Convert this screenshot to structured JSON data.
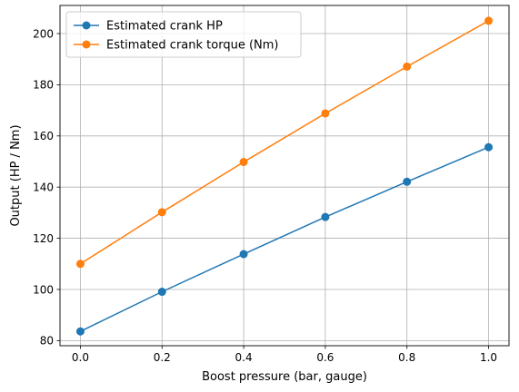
{
  "chart_data": {
    "type": "line",
    "title": "",
    "xlabel": "Boost pressure (bar, gauge)",
    "ylabel": "Output (HP / Nm)",
    "x": [
      0.0,
      0.2,
      0.4,
      0.6,
      0.8,
      1.0
    ],
    "xticks": [
      "0.0",
      "0.2",
      "0.4",
      "0.6",
      "0.8",
      "1.0"
    ],
    "yticks": [
      "80",
      "100",
      "120",
      "140",
      "160",
      "180",
      "200"
    ],
    "xlim": [
      -0.05,
      1.05
    ],
    "ylim": [
      78,
      211
    ],
    "grid": true,
    "legend_position": "top-left",
    "series": [
      {
        "name": "Estimated crank HP",
        "color": "#1f77b4",
        "marker": "circle",
        "values": [
          83.6,
          99.1,
          113.8,
          128.3,
          142.1,
          155.6
        ]
      },
      {
        "name": "Estimated crank torque (Nm)",
        "color": "#ff7f0e",
        "marker": "circle",
        "values": [
          110.0,
          130.2,
          149.8,
          168.8,
          187.1,
          205.0
        ]
      }
    ]
  }
}
